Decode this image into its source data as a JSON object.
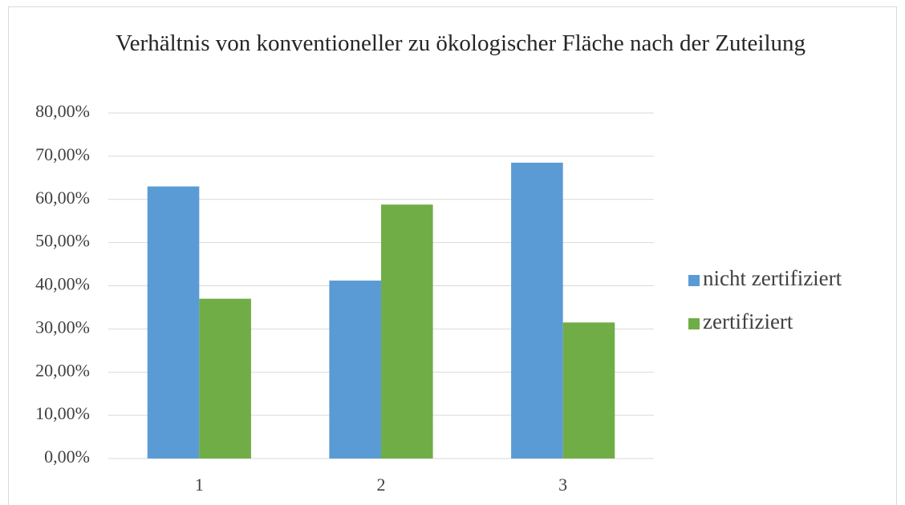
{
  "chart_data": {
    "type": "bar",
    "title": "Verhältnis von konventioneller zu ökologischer Fläche nach der Zuteilung",
    "categories": [
      "1",
      "2",
      "3"
    ],
    "series": [
      {
        "name": "nicht zertifiziert",
        "color": "#5b9bd5",
        "values": [
          63,
          41.2,
          68.5
        ]
      },
      {
        "name": "zertifiziert",
        "color": "#70ad47",
        "values": [
          37,
          58.8,
          31.5
        ]
      }
    ],
    "ylim": [
      0,
      80
    ],
    "yticks": [
      {
        "value": 0,
        "label": "0,00%"
      },
      {
        "value": 10,
        "label": "10,00%"
      },
      {
        "value": 20,
        "label": "20,00%"
      },
      {
        "value": 30,
        "label": "30,00%"
      },
      {
        "value": 40,
        "label": "40,00%"
      },
      {
        "value": 50,
        "label": "50,00%"
      },
      {
        "value": 60,
        "label": "60,00%"
      },
      {
        "value": 70,
        "label": "70,00%"
      },
      {
        "value": 80,
        "label": "80,00%"
      }
    ],
    "grid": true,
    "legend": "right"
  }
}
